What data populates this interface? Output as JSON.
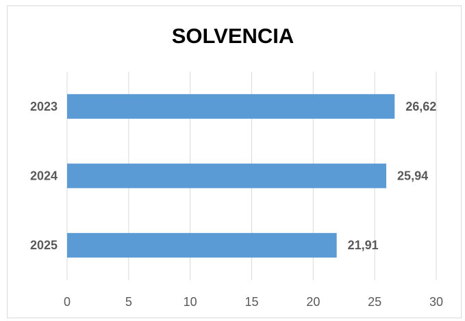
{
  "chart_data": {
    "type": "bar",
    "orientation": "horizontal",
    "title": "SOLVENCIA",
    "xlabel": "",
    "ylabel": "",
    "categories": [
      "2023",
      "2024",
      "2025"
    ],
    "values": [
      26.62,
      25.94,
      21.91
    ],
    "value_labels": [
      "26,62",
      "25,94",
      "21,91"
    ],
    "xlim": [
      0,
      30
    ],
    "x_ticks": [
      0,
      5,
      10,
      15,
      20,
      25,
      30
    ],
    "grid": "vertical",
    "legend": "none",
    "bar_color": "#5b9bd5",
    "grid_color": "#d9d9d9",
    "label_color": "#595959"
  }
}
